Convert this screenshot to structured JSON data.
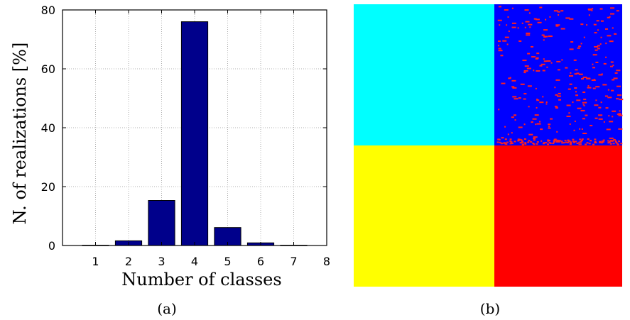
{
  "chart_data": [
    {
      "type": "bar",
      "panel_caption": "(a)",
      "xlabel": "Number of classes",
      "ylabel": "N. of realizations [%]",
      "x_ticks": [
        1,
        2,
        3,
        4,
        5,
        6,
        7,
        8
      ],
      "y_ticks": [
        0,
        20,
        40,
        60,
        80
      ],
      "xlim": [
        0,
        8
      ],
      "ylim": [
        0,
        80
      ],
      "grid": true,
      "bar_color": "#00008b",
      "categories": [
        1,
        2,
        3,
        4,
        5,
        6,
        7
      ],
      "values": [
        0.1,
        1.6,
        15.3,
        76.0,
        6.1,
        0.9,
        0.1
      ]
    },
    {
      "type": "heatmap",
      "panel_caption": "(b)",
      "colors": {
        "top_left": "#00ffff",
        "top_right": "#0000ff",
        "bottom_left": "#ffff00",
        "bottom_right": "#ff0000",
        "speckle": "#ff2020"
      }
    }
  ]
}
